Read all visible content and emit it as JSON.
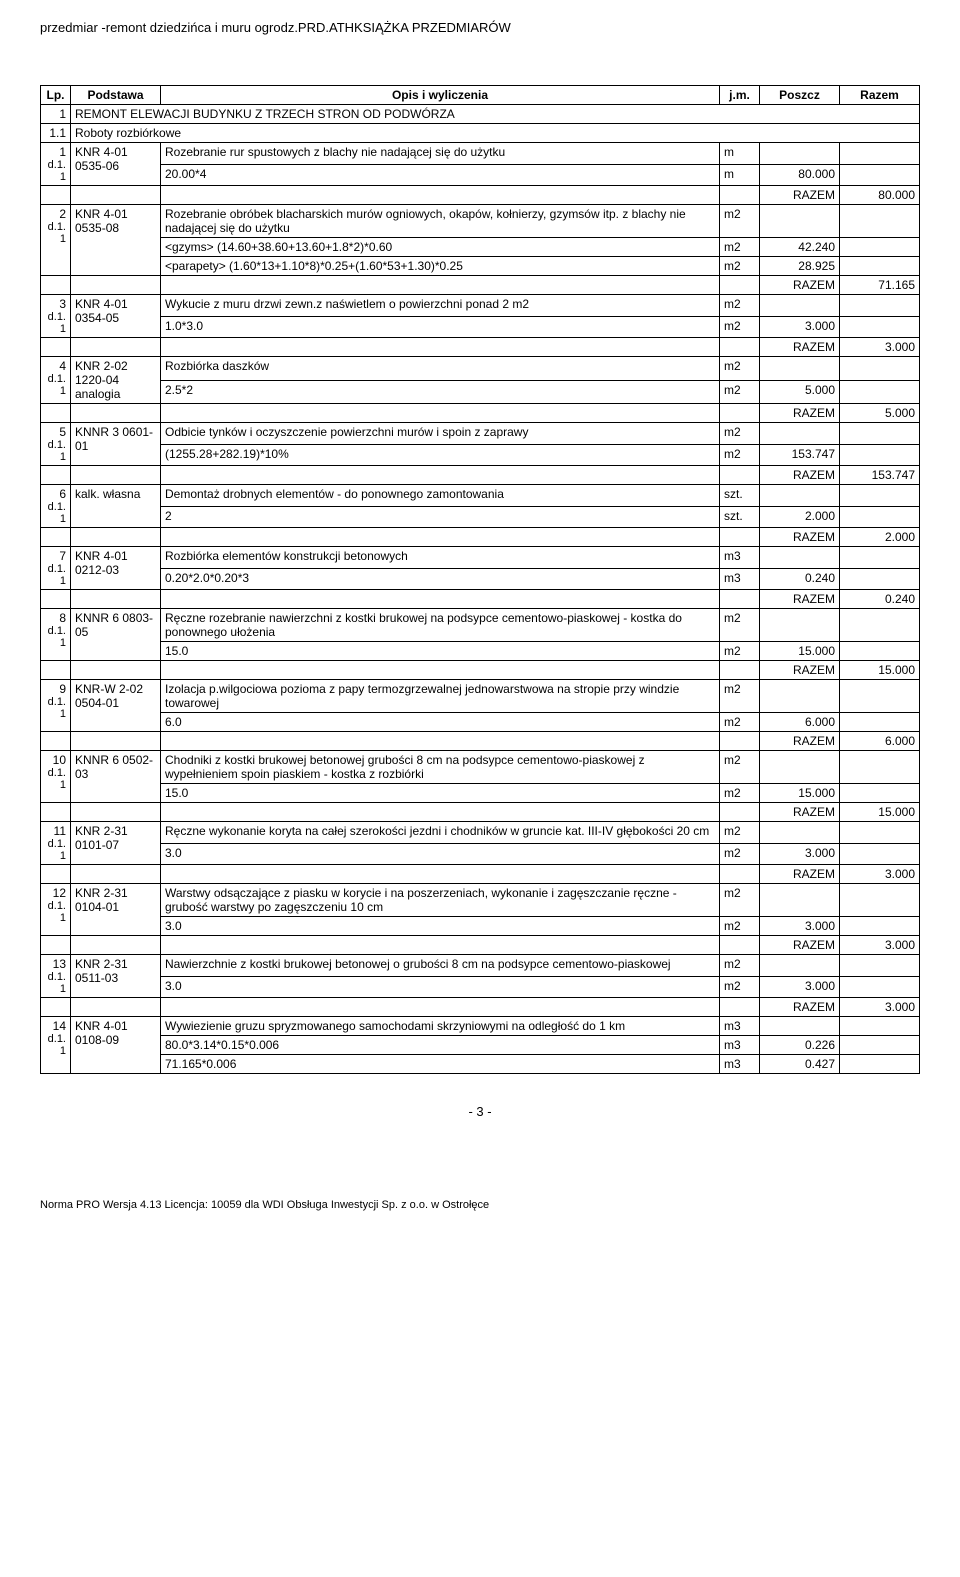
{
  "header": {
    "left": "przedmiar -remont dziedzińca i muru ogrodz.PRD.ATH",
    "right": "KSIĄŻKA PRZEDMIARÓW"
  },
  "columns": {
    "lp": "Lp.",
    "podstawa": "Podstawa",
    "opis": "Opis i wyliczenia",
    "jm": "j.m.",
    "poszcz": "Poszcz",
    "razem": "Razem"
  },
  "section1": {
    "num": "1",
    "title": "REMONT ELEWACJI BUDYNKU Z TRZECH STRON OD PODWÓRZA"
  },
  "section11": {
    "num": "1.1",
    "title": "Roboty rozbiórkowe"
  },
  "rows": [
    {
      "lp": "1",
      "dref": "d.1.1",
      "podst": "KNR 4-01 0535-06",
      "desc": "Rozebranie rur spustowych z blachy nie nadającej się do użytku",
      "jm": "m",
      "calcs": [
        {
          "expr": "20.00*4",
          "jm": "m",
          "val": "80.000"
        }
      ],
      "razem": "80.000"
    },
    {
      "lp": "2",
      "dref": "d.1.1",
      "podst": "KNR 4-01 0535-08",
      "desc": "Rozebranie obróbek blacharskich murów ogniowych, okapów, kołnierzy, gzymsów itp. z blachy nie nadającej się do użytku",
      "jm": "m2",
      "calcs": [
        {
          "expr": "<gzyms>    (14.60+38.60+13.60+1.8*2)*0.60",
          "jm": "m2",
          "val": "42.240"
        },
        {
          "expr": "<parapety> (1.60*13+1.10*8)*0.25+(1.60*53+1.30)*0.25",
          "jm": "m2",
          "val": "28.925"
        }
      ],
      "razem": "71.165"
    },
    {
      "lp": "3",
      "dref": "d.1.1",
      "podst": "KNR 4-01 0354-05",
      "desc": "Wykucie z muru drzwi zewn.z naświetlem o powierzchni ponad 2 m2",
      "jm": "m2",
      "calcs": [
        {
          "expr": "1.0*3.0",
          "jm": "m2",
          "val": "3.000"
        }
      ],
      "razem": "3.000"
    },
    {
      "lp": "4",
      "dref": "d.1.1",
      "podst": "KNR 2-02 1220-04 analogia",
      "desc": "Rozbiórka daszków",
      "jm": "m2",
      "calcs": [
        {
          "expr": "2.5*2",
          "jm": "m2",
          "val": "5.000"
        }
      ],
      "razem": "5.000"
    },
    {
      "lp": "5",
      "dref": "d.1.1",
      "podst": "KNNR 3 0601-01",
      "desc": "Odbicie tynków i oczyszczenie powierzchni murów i spoin z zaprawy",
      "jm": "m2",
      "calcs": [
        {
          "expr": "(1255.28+282.19)*10%",
          "jm": "m2",
          "val": "153.747"
        }
      ],
      "razem": "153.747"
    },
    {
      "lp": "6",
      "dref": "d.1.1",
      "podst": "kalk. własna",
      "desc": "Demontaż drobnych elementów - do ponownego zamontowania",
      "jm": "szt.",
      "calcs": [
        {
          "expr": "2",
          "jm": "szt.",
          "val": "2.000"
        }
      ],
      "razem": "2.000"
    },
    {
      "lp": "7",
      "dref": "d.1.1",
      "podst": "KNR 4-01 0212-03",
      "desc": "Rozbiórka elementów konstrukcji betonowych",
      "jm": "m3",
      "calcs": [
        {
          "expr": "0.20*2.0*0.20*3",
          "jm": "m3",
          "val": "0.240"
        }
      ],
      "razem": "0.240"
    },
    {
      "lp": "8",
      "dref": "d.1.1",
      "podst": "KNNR 6 0803-05",
      "desc": "Ręczne rozebranie nawierzchni z kostki brukowej  na podsypce cementowo-piaskowej - kostka do ponownego ułożenia",
      "jm": "m2",
      "calcs": [
        {
          "expr": "15.0",
          "jm": "m2",
          "val": "15.000"
        }
      ],
      "razem": "15.000"
    },
    {
      "lp": "9",
      "dref": "d.1.1",
      "podst": "KNR-W 2-02 0504-01",
      "desc": "Izolacja p.wilgociowa pozioma z papy termozgrzewalnej jednowarstwowa na stropie przy windzie towarowej",
      "jm": "m2",
      "calcs": [
        {
          "expr": "6.0",
          "jm": "m2",
          "val": "6.000"
        }
      ],
      "razem": "6.000"
    },
    {
      "lp": "10",
      "dref": "d.1.1",
      "podst": "KNNR 6 0502-03",
      "desc": "Chodniki z kostki brukowej betonowej grubości 8 cm na podsypce cementowo-piaskowej z wypełnieniem spoin piaskiem - kostka z rozbiórki",
      "jm": "m2",
      "calcs": [
        {
          "expr": "15.0",
          "jm": "m2",
          "val": "15.000"
        }
      ],
      "razem": "15.000"
    },
    {
      "lp": "11",
      "dref": "d.1.1",
      "podst": "KNR 2-31 0101-07",
      "desc": "Ręczne wykonanie koryta na całej szerokości jezdni i chodników w gruncie kat. III-IV głębokości 20 cm",
      "jm": "m2",
      "calcs": [
        {
          "expr": "3.0",
          "jm": "m2",
          "val": "3.000"
        }
      ],
      "razem": "3.000"
    },
    {
      "lp": "12",
      "dref": "d.1.1",
      "podst": "KNR 2-31 0104-01",
      "desc": "Warstwy odsączające z piasku w korycie i na poszerzeniach, wykonanie i zagęszczanie ręczne - grubość warstwy po zagęszczeniu 10 cm",
      "jm": "m2",
      "calcs": [
        {
          "expr": "3.0",
          "jm": "m2",
          "val": "3.000"
        }
      ],
      "razem": "3.000"
    },
    {
      "lp": "13",
      "dref": "d.1.1",
      "podst": "KNR 2-31 0511-03",
      "desc": "Nawierzchnie z kostki brukowej betonowej o grubości 8 cm na podsypce cementowo-piaskowej",
      "jm": "m2",
      "calcs": [
        {
          "expr": "3.0",
          "jm": "m2",
          "val": "3.000"
        }
      ],
      "razem": "3.000"
    },
    {
      "lp": "14",
      "dref": "d.1.1",
      "podst": "KNR 4-01 0108-09",
      "desc": "Wywiezienie gruzu spryzmowanego samochodami skrzyniowymi na odległość do 1 km",
      "jm": "m3",
      "calcs": [
        {
          "expr": "80.0*3.14*0.15*0.006",
          "jm": "m3",
          "val": "0.226"
        },
        {
          "expr": "71.165*0.006",
          "jm": "m3",
          "val": "0.427"
        }
      ],
      "razem": null
    }
  ],
  "razemLabel": "RAZEM",
  "pageNum": "- 3 -",
  "footer": "Norma PRO Wersja 4.13 Licencja: 10059 dla WDI Obsługa Inwestycji Sp. z o.o. w Ostrołęce"
}
